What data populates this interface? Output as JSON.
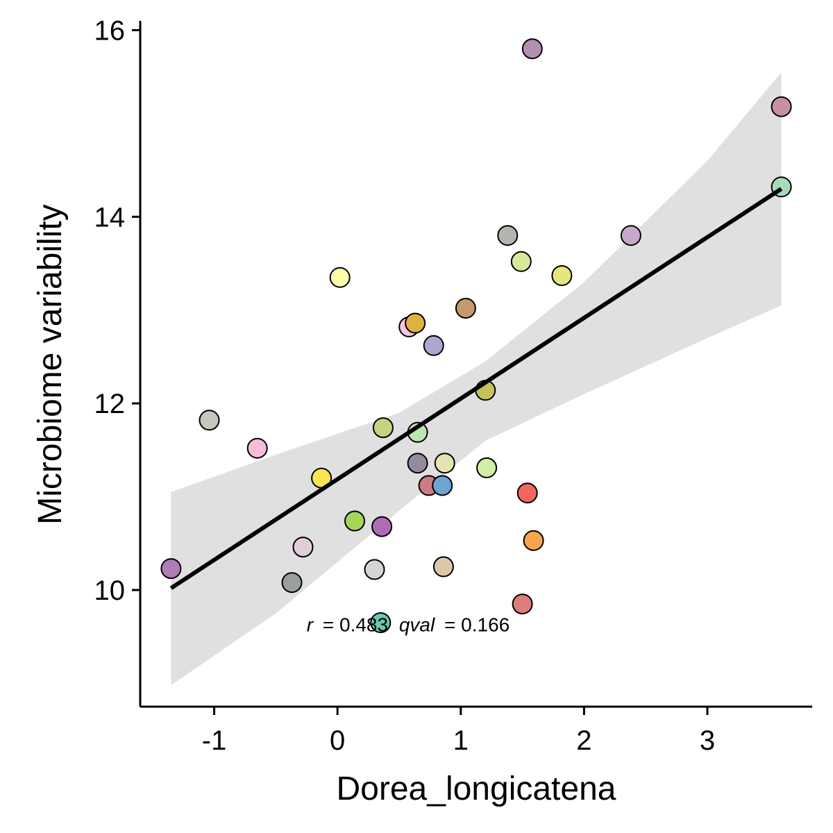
{
  "chart_data": {
    "type": "scatter",
    "xlabel": "Dorea_longicatena",
    "ylabel": "Microbiome variability",
    "xlim": [
      -1.6,
      3.85
    ],
    "ylim": [
      8.75,
      16.1
    ],
    "x_ticks": [
      -1,
      0,
      1,
      2,
      3
    ],
    "y_ticks": [
      10,
      12,
      14,
      16
    ],
    "grid": false,
    "annotation": {
      "r_label": "r",
      "r_value": "= 0.483",
      "q_label": "qval",
      "q_value": "= 0.166",
      "x": -0.25,
      "y": 9.63
    },
    "regression": {
      "x_start": -1.35,
      "y_start": 10.02,
      "x_end": 3.6,
      "y_end": 14.3,
      "ci_upper": [
        [
          -1.35,
          11.05
        ],
        [
          -0.5,
          11.45
        ],
        [
          0.5,
          11.9
        ],
        [
          1.2,
          12.45
        ],
        [
          2.0,
          13.3
        ],
        [
          3.0,
          14.6
        ],
        [
          3.6,
          15.55
        ]
      ],
      "ci_lower": [
        [
          -1.35,
          8.98
        ],
        [
          -0.5,
          9.75
        ],
        [
          0.5,
          10.85
        ],
        [
          1.2,
          11.6
        ],
        [
          2.0,
          12.1
        ],
        [
          3.0,
          12.7
        ],
        [
          3.6,
          13.05
        ]
      ],
      "line_color": "#000000",
      "ci_color": "#e0e0e0"
    },
    "points": [
      {
        "x": 1.58,
        "y": 15.8,
        "color": "#b48fb2"
      },
      {
        "x": 3.6,
        "y": 15.18,
        "color": "#c98fa6"
      },
      {
        "x": 3.6,
        "y": 14.32,
        "color": "#a6dbb6"
      },
      {
        "x": 1.38,
        "y": 13.8,
        "color": "#b3b5ac"
      },
      {
        "x": 2.38,
        "y": 13.8,
        "color": "#c9a8c9"
      },
      {
        "x": 1.49,
        "y": 13.52,
        "color": "#d7e99a"
      },
      {
        "x": 1.82,
        "y": 13.37,
        "color": "#e8e67a"
      },
      {
        "x": 0.02,
        "y": 13.35,
        "color": "#fffca8"
      },
      {
        "x": 1.04,
        "y": 13.02,
        "color": "#c49a6c"
      },
      {
        "x": 0.58,
        "y": 12.82,
        "color": "#f4c6dc"
      },
      {
        "x": 0.63,
        "y": 12.86,
        "color": "#dfb044"
      },
      {
        "x": 0.78,
        "y": 12.62,
        "color": "#aca7cf"
      },
      {
        "x": 1.2,
        "y": 12.14,
        "color": "#c3c35a"
      },
      {
        "x": -1.04,
        "y": 11.82,
        "color": "#c7c7c0"
      },
      {
        "x": 0.37,
        "y": 11.74,
        "color": "#c7d27f"
      },
      {
        "x": 0.65,
        "y": 11.69,
        "color": "#bde5b2"
      },
      {
        "x": -0.65,
        "y": 11.52,
        "color": "#f7bddb"
      },
      {
        "x": 0.65,
        "y": 11.36,
        "color": "#94899d"
      },
      {
        "x": 0.87,
        "y": 11.36,
        "color": "#e5e3b1"
      },
      {
        "x": 1.21,
        "y": 11.31,
        "color": "#d2eda7"
      },
      {
        "x": -0.13,
        "y": 11.2,
        "color": "#fbe551"
      },
      {
        "x": 0.74,
        "y": 11.12,
        "color": "#cb7d83"
      },
      {
        "x": 0.85,
        "y": 11.12,
        "color": "#6fa3d0"
      },
      {
        "x": 1.54,
        "y": 11.04,
        "color": "#f06760"
      },
      {
        "x": 0.14,
        "y": 10.74,
        "color": "#a5d65b"
      },
      {
        "x": 0.36,
        "y": 10.68,
        "color": "#ac6db1"
      },
      {
        "x": 1.59,
        "y": 10.53,
        "color": "#f9a44e"
      },
      {
        "x": -0.28,
        "y": 10.46,
        "color": "#e0cdd9"
      },
      {
        "x": -1.35,
        "y": 10.23,
        "color": "#ae7db6"
      },
      {
        "x": 0.3,
        "y": 10.22,
        "color": "#d5d5d5"
      },
      {
        "x": 0.86,
        "y": 10.25,
        "color": "#dfc8a8"
      },
      {
        "x": -0.37,
        "y": 10.08,
        "color": "#989f9d"
      },
      {
        "x": 1.5,
        "y": 9.85,
        "color": "#e07c7c"
      },
      {
        "x": 0.35,
        "y": 9.65,
        "color": "#6dc7b2"
      }
    ]
  }
}
